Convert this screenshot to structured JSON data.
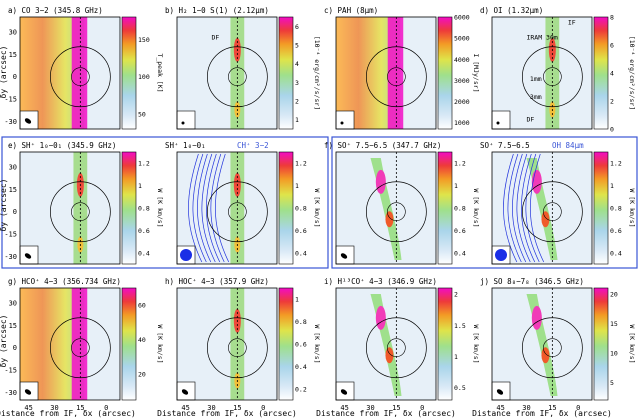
{
  "figure": {
    "xlabel": "Distance from IF, δx (arcsec)",
    "ylabel": "δy (arcsec)",
    "x_ticks": [
      "45",
      "30",
      "15",
      "0"
    ],
    "y_ticks": [
      "30",
      "15",
      "0",
      "-15",
      "-30"
    ]
  },
  "chart_data": [
    {
      "id": "a",
      "type": "heatmap",
      "title": "a)   CO 3−2 (345.8 GHz)",
      "colorbar_label": "T_peak [K]",
      "ticks": [
        "50",
        "100",
        "150"
      ],
      "cbar_min": 30,
      "cbar_max": 180,
      "emission": "broad",
      "labels": [],
      "beam": "ellipse"
    },
    {
      "id": "b",
      "type": "heatmap",
      "title": "b)   H₂ 1−0 S(1) (2.12μm)",
      "colorbar_label": "[10⁻⁴ erg/cm²/s/sr]",
      "ticks": [
        "1",
        "2",
        "3",
        "4",
        "5",
        "6"
      ],
      "cbar_min": 0.5,
      "cbar_max": 6.5,
      "emission": "narrow",
      "labels": [
        "DF"
      ],
      "beam": "dot"
    },
    {
      "id": "c",
      "type": "heatmap",
      "title": "c)   PAH (8μm)",
      "colorbar_label": "I [MJy/sr]",
      "ticks": [
        "1000",
        "2000",
        "3000",
        "4000",
        "5000",
        "6000"
      ],
      "cbar_min": 700,
      "cbar_max": 6000,
      "emission": "broad",
      "labels": [],
      "beam": "dot"
    },
    {
      "id": "d",
      "type": "heatmap",
      "title": "d)   OI (1.32μm)",
      "colorbar_label": "[10⁻⁴ erg/cm²/s/sr]",
      "ticks": [
        "0",
        "2",
        "4",
        "6",
        "8"
      ],
      "cbar_min": 0,
      "cbar_max": 8,
      "emission": "narrow",
      "labels": [
        "IRAM 30m",
        "1mm",
        "3mm",
        "DF",
        "IF"
      ],
      "beam": "dot"
    },
    {
      "id": "e1",
      "type": "heatmap",
      "title": "e)   SH⁺ 1₀−0₁ (345.9 GHz)",
      "colorbar_label": "W [K km/s]",
      "ticks": [
        "0.4",
        "0.6",
        "0.8",
        "1",
        "1.2"
      ],
      "cbar_min": 0.3,
      "cbar_max": 1.3,
      "emission": "narrow",
      "labels": [],
      "beam": "ellipse"
    },
    {
      "id": "e2",
      "type": "heatmap",
      "title": "SH⁺ 1₀−0₁",
      "title_extra": "CH⁺ 3−2",
      "colorbar_label": "W [K km/s]",
      "ticks": [
        "0.4",
        "0.6",
        "0.8",
        "1",
        "1.2"
      ],
      "cbar_min": 0.3,
      "cbar_max": 1.3,
      "emission": "narrow",
      "labels": [],
      "beam": "big",
      "contours": "CH⁺"
    },
    {
      "id": "f1",
      "type": "heatmap",
      "title": "f)   SO⁺ 7.5−6.5 (347.7 GHz)",
      "colorbar_label": "W [K km/s]",
      "ticks": [
        "0.4",
        "0.6",
        "0.8",
        "1",
        "1.2"
      ],
      "cbar_min": 0.3,
      "cbar_max": 1.3,
      "emission": "medium",
      "labels": [],
      "beam": "ellipse"
    },
    {
      "id": "f2",
      "type": "heatmap",
      "title": "SO⁺ 7.5−6.5",
      "title_extra": "OH 84μm",
      "colorbar_label": "W [K km/s]",
      "ticks": [
        "0.4",
        "0.6",
        "0.8",
        "1",
        "1.2"
      ],
      "cbar_min": 0.3,
      "cbar_max": 1.3,
      "emission": "medium",
      "labels": [],
      "beam": "big",
      "contours": "OH"
    },
    {
      "id": "g",
      "type": "heatmap",
      "title": "g)   HCO⁺ 4−3 (356.734 GHz)",
      "colorbar_label": "W [K km/s]",
      "ticks": [
        "20",
        "40",
        "60"
      ],
      "cbar_min": 5,
      "cbar_max": 70,
      "emission": "broad",
      "labels": [],
      "beam": "ellipse"
    },
    {
      "id": "h",
      "type": "heatmap",
      "title": "h)   HOC⁺ 4−3 (357.9 GHz)",
      "colorbar_label": "W [K km/s]",
      "ticks": [
        "0.2",
        "0.4",
        "0.6",
        "0.8",
        "1"
      ],
      "cbar_min": 0.1,
      "cbar_max": 1.1,
      "emission": "narrow",
      "labels": [],
      "beam": "ellipse"
    },
    {
      "id": "i",
      "type": "heatmap",
      "title": "i)   H¹³CO⁺ 4−3 (346.9 GHz)",
      "colorbar_label": "W [K km/s]",
      "ticks": [
        "0.5",
        "1",
        "1.5",
        "2"
      ],
      "cbar_min": 0.3,
      "cbar_max": 2.1,
      "emission": "medium",
      "labels": [],
      "beam": "ellipse"
    },
    {
      "id": "j",
      "type": "heatmap",
      "title": "j)   SO 8₈−7₈ (346.5 GHz)",
      "colorbar_label": "W [K km/s]",
      "ticks": [
        "5",
        "10",
        "15",
        "20"
      ],
      "cbar_min": 2,
      "cbar_max": 21,
      "emission": "medium",
      "labels": [],
      "beam": "ellipse"
    }
  ],
  "colors": {
    "frame_blue": "#3a55d6",
    "contour_blue": "#2233dd"
  }
}
